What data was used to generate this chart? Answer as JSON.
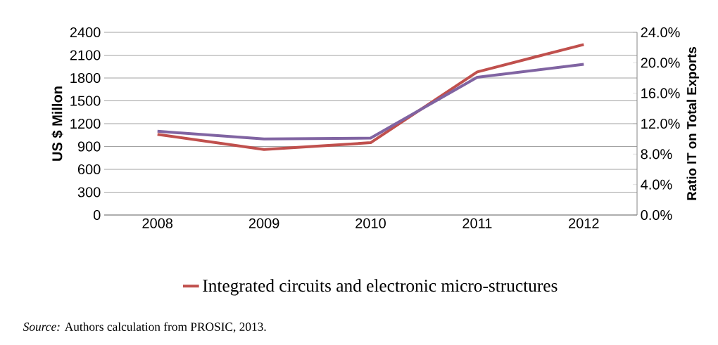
{
  "chart_data": {
    "type": "line",
    "categories": [
      "2008",
      "2009",
      "2010",
      "2011",
      "2012"
    ],
    "ylabel": "US $ Millon",
    "y2label": "Ratio IT on Total Exports",
    "ylim": [
      0,
      2400
    ],
    "yticks": [
      0,
      300,
      600,
      900,
      1200,
      1500,
      1800,
      2100,
      2400
    ],
    "y2lim": [
      0,
      24
    ],
    "y2ticks": [
      {
        "value": 0,
        "label": "0.0%"
      },
      {
        "value": 4,
        "label": "4.0%"
      },
      {
        "value": 8,
        "label": "8.0%"
      },
      {
        "value": 12,
        "label": "12.0%"
      },
      {
        "value": 16,
        "label": "16.0%"
      },
      {
        "value": 20,
        "label": "20.0%"
      },
      {
        "value": 24,
        "label": "24.0%"
      }
    ],
    "series": [
      {
        "name": "Integrated circuits and electronic micro-structures",
        "color": "#c0504d",
        "values": [
          1060,
          860,
          950,
          1880,
          2240
        ]
      },
      {
        "color": "#8064a2",
        "axis": "y2",
        "values": [
          11.0,
          10.0,
          10.1,
          18.1,
          19.8
        ]
      }
    ],
    "grid": "y",
    "legend": "bottom",
    "annotations": [
      "*Source:* Authors calculation from PROSIC, 2013."
    ]
  }
}
